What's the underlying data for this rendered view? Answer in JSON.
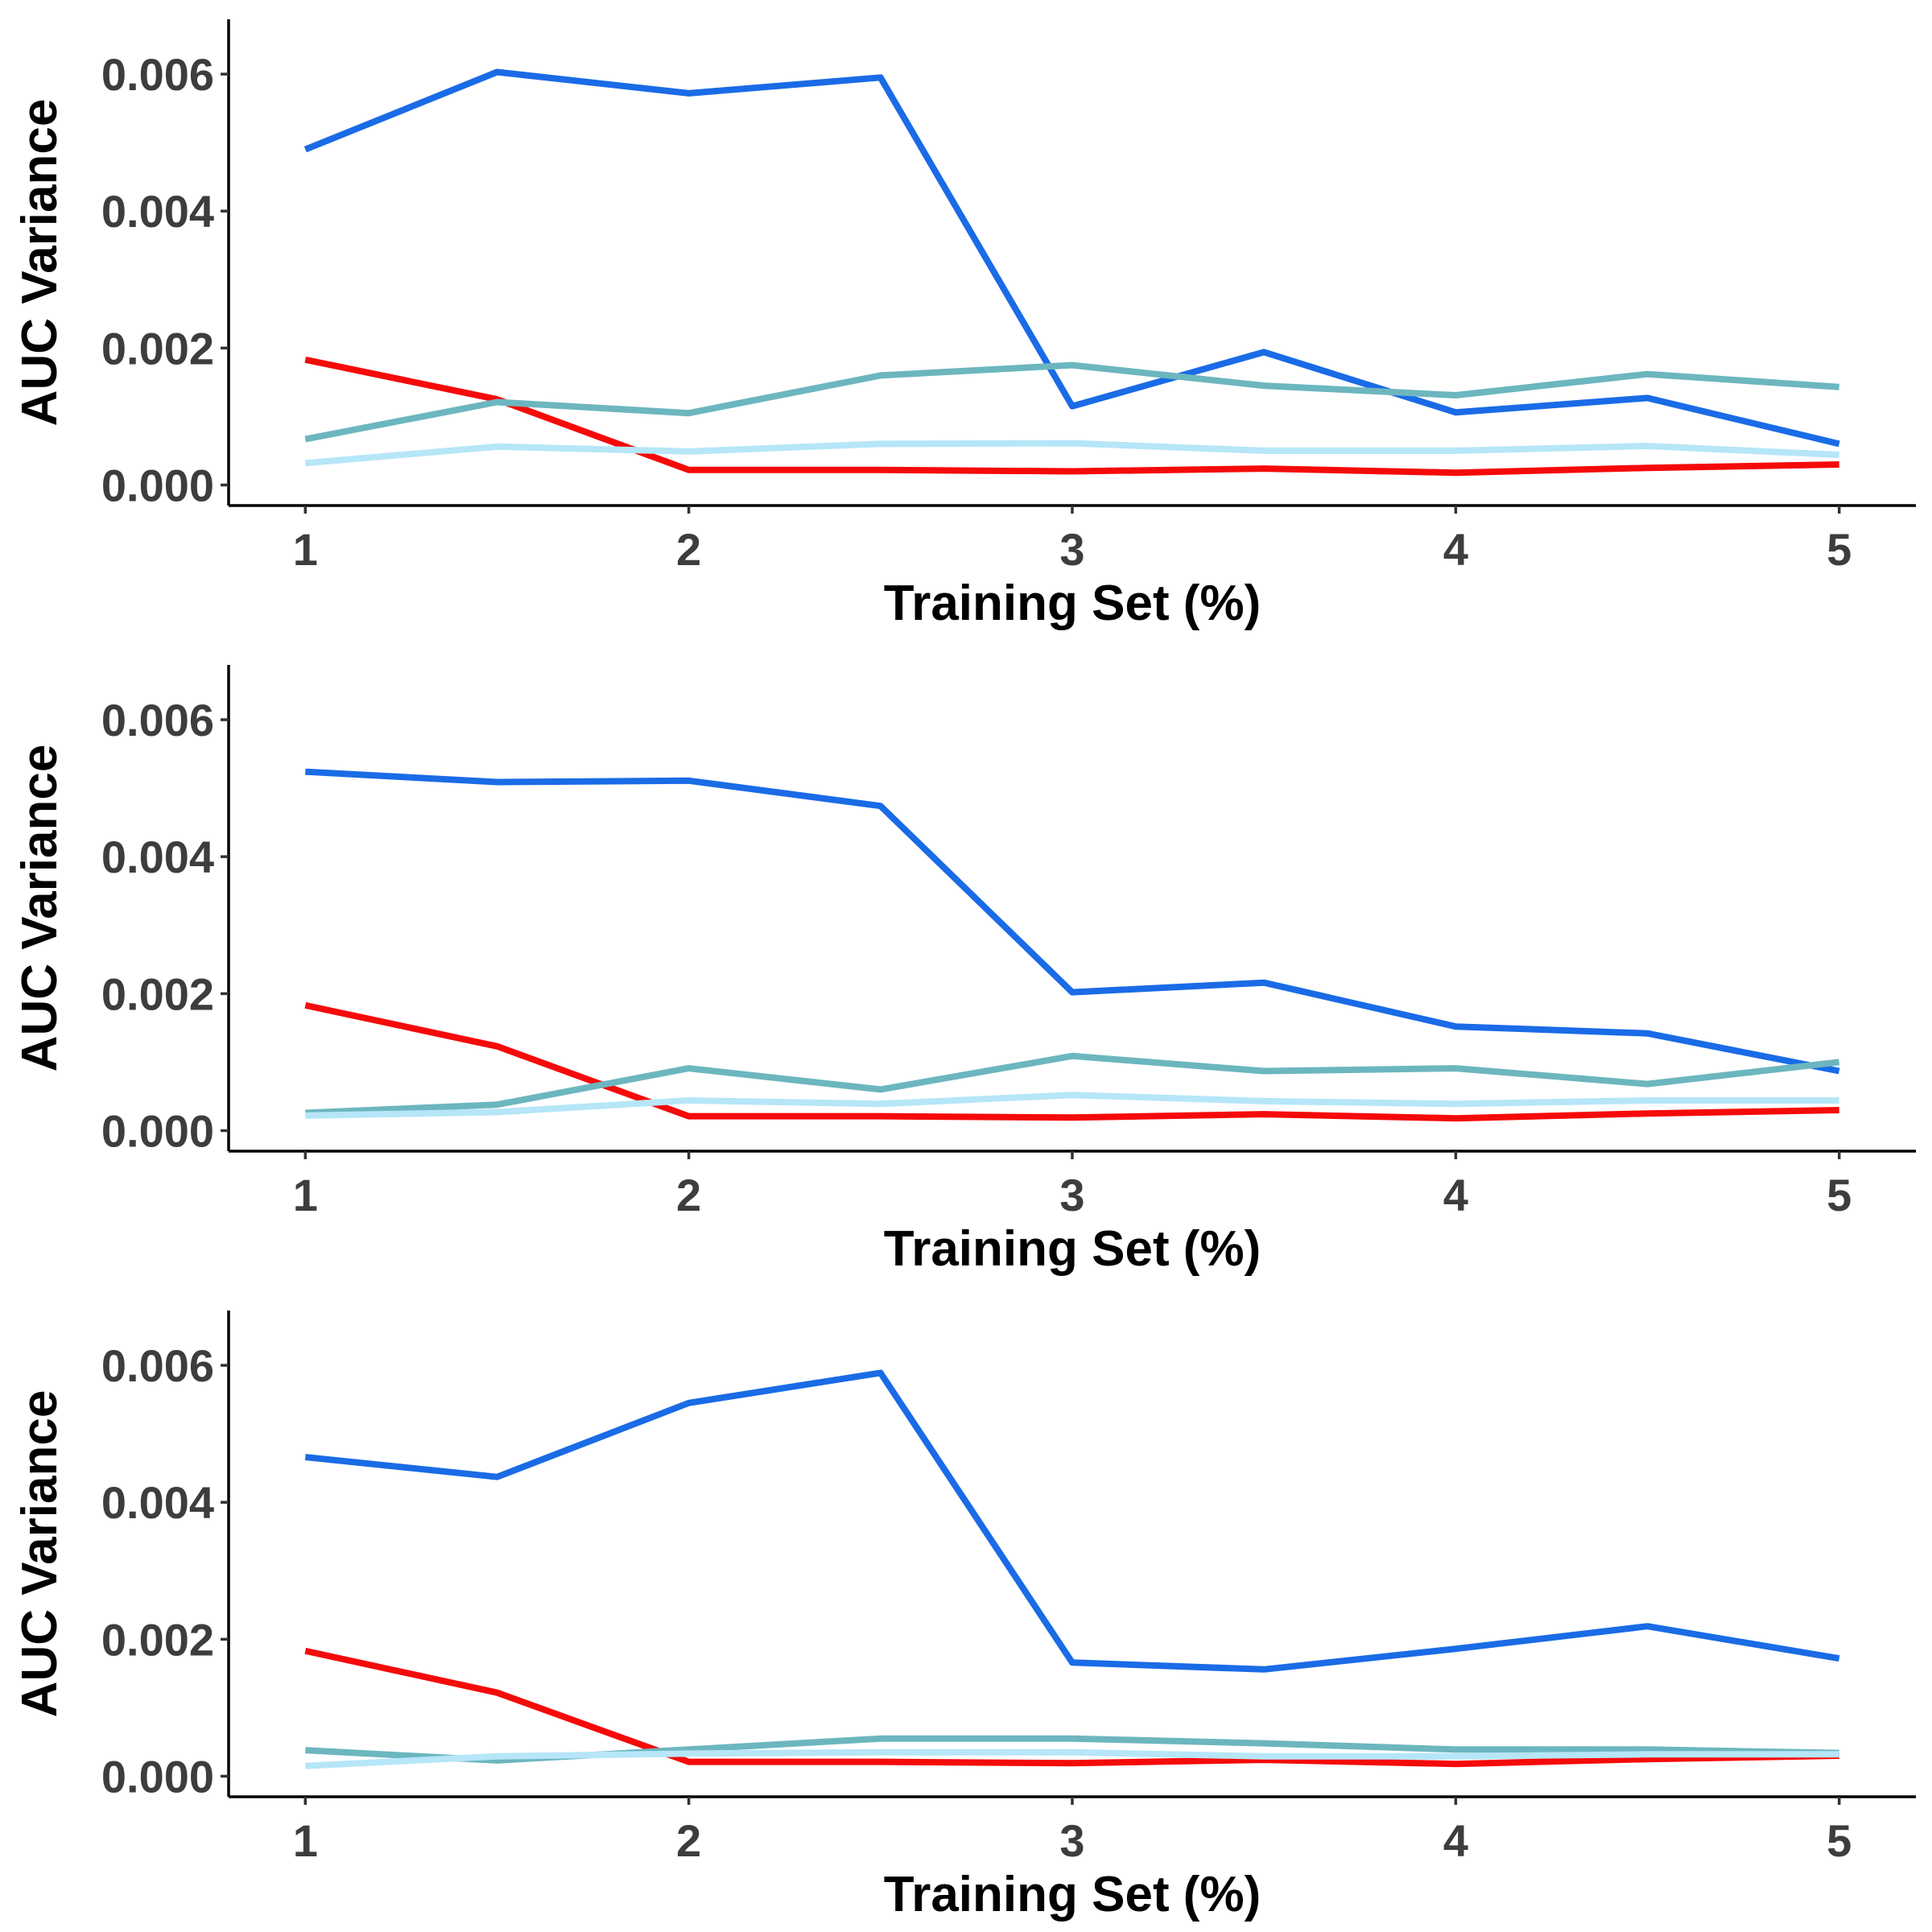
{
  "colors": {
    "blue": "#1a6be6",
    "red": "#f50a0a",
    "teal": "#6cb6bf",
    "light_blue": "#b6e6f8"
  },
  "chart_data": [
    {
      "type": "line",
      "xlabel": "Training Set (%)",
      "ylabel": "AUC Variance",
      "xlim": [
        0.8,
        5.2
      ],
      "ylim": [
        -0.0003,
        0.0068
      ],
      "xticks": [
        1,
        2,
        3,
        4,
        5
      ],
      "xtick_labels": [
        "1",
        "2",
        "3",
        "4",
        "5"
      ],
      "yticks": [
        0,
        0.002,
        0.004,
        0.006
      ],
      "ytick_labels": [
        "0.000",
        "0.002",
        "0.004",
        "0.006"
      ],
      "grid": false,
      "x": [
        1,
        1.5,
        2,
        2.5,
        3,
        3.5,
        4,
        4.5,
        5
      ],
      "series": [
        {
          "color": "#1a6be6",
          "values": [
            0.0049,
            0.00603,
            0.00572,
            0.00595,
            0.00115,
            0.00194,
            0.00106,
            0.00127,
            0.0006
          ]
        },
        {
          "color": "#f50a0a",
          "values": [
            0.00183,
            0.00125,
            0.00022,
            0.00022,
            0.0002,
            0.00024,
            0.00018,
            0.00025,
            0.0003
          ]
        },
        {
          "color": "#6cb6bf",
          "values": [
            0.00067,
            0.00121,
            0.00105,
            0.0016,
            0.00175,
            0.00145,
            0.00131,
            0.00162,
            0.00143
          ]
        },
        {
          "color": "#b6e6f8",
          "values": [
            0.00032,
            0.00056,
            0.00049,
            0.0006,
            0.00061,
            0.0005,
            0.0005,
            0.00057,
            0.00044
          ]
        }
      ]
    },
    {
      "type": "line",
      "xlabel": "Training Set (%)",
      "ylabel": "AUC Variance",
      "xlim": [
        0.8,
        5.2
      ],
      "ylim": [
        -0.0003,
        0.0068
      ],
      "xticks": [
        1,
        2,
        3,
        4,
        5
      ],
      "xtick_labels": [
        "1",
        "2",
        "3",
        "4",
        "5"
      ],
      "yticks": [
        0,
        0.002,
        0.004,
        0.006
      ],
      "ytick_labels": [
        "0.000",
        "0.002",
        "0.004",
        "0.006"
      ],
      "grid": false,
      "x": [
        1,
        1.5,
        2,
        2.5,
        3,
        3.5,
        4,
        4.5,
        5
      ],
      "series": [
        {
          "color": "#1a6be6",
          "values": [
            0.00524,
            0.00509,
            0.00511,
            0.00474,
            0.00202,
            0.00216,
            0.00152,
            0.00142,
            0.00087
          ]
        },
        {
          "color": "#f50a0a",
          "values": [
            0.00183,
            0.00123,
            0.00021,
            0.00021,
            0.00019,
            0.00024,
            0.00018,
            0.00025,
            0.0003
          ]
        },
        {
          "color": "#6cb6bf",
          "values": [
            0.00026,
            0.00038,
            0.00091,
            0.0006,
            0.00109,
            0.00087,
            0.00091,
            0.00068,
            0.001
          ]
        },
        {
          "color": "#b6e6f8",
          "values": [
            0.00022,
            0.00027,
            0.00044,
            0.00039,
            0.00052,
            0.00043,
            0.00039,
            0.00044,
            0.00044
          ]
        }
      ]
    },
    {
      "type": "line",
      "xlabel": "Training Set (%)",
      "ylabel": "AUC Variance",
      "xlim": [
        0.8,
        5.2
      ],
      "ylim": [
        -0.0003,
        0.0068
      ],
      "xticks": [
        1,
        2,
        3,
        4,
        5
      ],
      "xtick_labels": [
        "1",
        "2",
        "3",
        "4",
        "5"
      ],
      "yticks": [
        0,
        0.002,
        0.004,
        0.006
      ],
      "ytick_labels": [
        "0.000",
        "0.002",
        "0.004",
        "0.006"
      ],
      "grid": false,
      "x": [
        1,
        1.5,
        2,
        2.5,
        3,
        3.5,
        4,
        4.5,
        5
      ],
      "series": [
        {
          "color": "#1a6be6",
          "values": [
            0.00466,
            0.00437,
            0.00545,
            0.00589,
            0.00166,
            0.00156,
            0.00186,
            0.00219,
            0.00172
          ]
        },
        {
          "color": "#f50a0a",
          "values": [
            0.00183,
            0.00122,
            0.00021,
            0.00021,
            0.00019,
            0.00024,
            0.00018,
            0.00025,
            0.0003
          ]
        },
        {
          "color": "#6cb6bf",
          "values": [
            0.00038,
            0.00023,
            0.00039,
            0.00055,
            0.00055,
            0.00048,
            0.00039,
            0.00039,
            0.00034
          ]
        },
        {
          "color": "#b6e6f8",
          "values": [
            0.00015,
            0.00029,
            0.00033,
            0.00035,
            0.00035,
            0.00029,
            0.00029,
            0.00032,
            0.00032
          ]
        }
      ]
    }
  ]
}
